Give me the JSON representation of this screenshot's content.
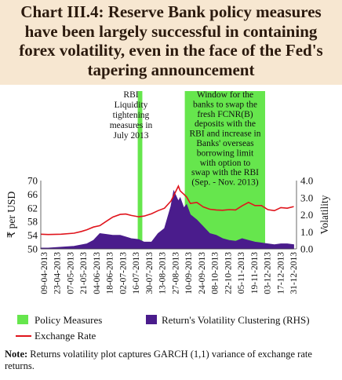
{
  "title": "Chart III.4: Reserve Bank policy measures have been largely successful in containing forex volatility, even in the face of the Fed's tapering announcement",
  "note_label": "Note:",
  "note_text": "Returns volatility plot captures GARCH (1,1) variance of exchange rate returns.",
  "annotations": {
    "rbi_liquidity": [
      "RBI",
      "Liquidity",
      "tightening",
      "measures in",
      "July 2013"
    ],
    "fcnr_window": [
      "Window for the",
      "banks to swap the",
      "fresh FCNR(B)",
      "deposits with the",
      "RBI and increase in",
      "Banks' overseas",
      "borrowing limit",
      "with option to",
      "swap with the RBI",
      "(Sep. - Nov. 2013)"
    ]
  },
  "legend": {
    "policy": "Policy Measures",
    "volatility": "Return's Volatility Clustering (RHS)",
    "rate": "Exchange Rate"
  },
  "colors": {
    "policy": "#66e64d",
    "volatility": "#4a1c8c",
    "rate": "#e0141c",
    "title_bg": "#f7e7d1"
  },
  "chart_data": {
    "type": "line",
    "ylabel": "₹ per USD",
    "y2label": "Volatility",
    "ylim": [
      50,
      70
    ],
    "y2lim": [
      0,
      4
    ],
    "yticks": [
      50,
      54,
      58,
      62,
      66,
      70
    ],
    "y2ticks": [
      "0.0",
      "1.0",
      "2.0",
      "3.0",
      "4.0"
    ],
    "x_ticks": [
      "09-04-2013",
      "23-04-2013",
      "07-05-2013",
      "21-05-2013",
      "04-06-2013",
      "18-06-2013",
      "02-07-2013",
      "16-07-2013",
      "30-07-2013",
      "13-08-2013",
      "27-08-2013",
      "10-09-2013",
      "24-09-2013",
      "08-10-2013",
      "22-10-2013",
      "05-11-2013",
      "19-11-2013",
      "03-12-2013",
      "17-12-2013",
      "31-12-2013"
    ],
    "shaded_periods": [
      {
        "name": "RBI liquidity tightening",
        "start": "15-07-2013",
        "end": "20-07-2013"
      },
      {
        "name": "FCNR(B) swap window",
        "start": "04-09-2013",
        "end": "30-11-2013"
      }
    ],
    "series": [
      {
        "name": "Exchange Rate",
        "axis": "left",
        "style": "line",
        "x": [
          "01-04-2013",
          "09-04-2013",
          "23-04-2013",
          "07-05-2013",
          "15-05-2013",
          "21-05-2013",
          "28-05-2013",
          "04-06-2013",
          "11-06-2013",
          "18-06-2013",
          "26-06-2013",
          "02-07-2013",
          "08-07-2013",
          "16-07-2013",
          "22-07-2013",
          "30-07-2013",
          "06-08-2013",
          "13-08-2013",
          "20-08-2013",
          "23-08-2013",
          "28-08-2013",
          "30-08-2013",
          "03-09-2013",
          "06-09-2013",
          "10-09-2013",
          "17-09-2013",
          "24-09-2013",
          "01-10-2013",
          "08-10-2013",
          "15-10-2013",
          "22-10-2013",
          "29-10-2013",
          "05-11-2013",
          "12-11-2013",
          "19-11-2013",
          "26-11-2013",
          "03-12-2013",
          "10-12-2013",
          "17-12-2013",
          "24-12-2013",
          "31-12-2013"
        ],
        "values": [
          54.3,
          54.2,
          54.3,
          54.6,
          55.1,
          55.6,
          56.4,
          56.8,
          58.1,
          59.3,
          60.1,
          60.2,
          59.8,
          59.4,
          59.6,
          60.3,
          61.2,
          61.9,
          64.0,
          65.6,
          68.4,
          67.0,
          66.0,
          65.2,
          63.3,
          63.6,
          62.3,
          61.6,
          61.4,
          61.3,
          61.5,
          61.4,
          62.6,
          63.6,
          62.7,
          62.7,
          61.5,
          61.2,
          62.1,
          61.9,
          62.4
        ]
      },
      {
        "name": "Return's Volatility Clustering (RHS)",
        "axis": "right",
        "style": "area",
        "x": [
          "01-04-2013",
          "09-04-2013",
          "23-04-2013",
          "07-05-2013",
          "21-05-2013",
          "28-05-2013",
          "04-06-2013",
          "11-06-2013",
          "18-06-2013",
          "26-06-2013",
          "02-07-2013",
          "08-07-2013",
          "16-07-2013",
          "22-07-2013",
          "30-07-2013",
          "06-08-2013",
          "13-08-2013",
          "20-08-2013",
          "23-08-2013",
          "28-08-2013",
          "30-08-2013",
          "03-09-2013",
          "06-09-2013",
          "10-09-2013",
          "17-09-2013",
          "24-09-2013",
          "01-10-2013",
          "08-10-2013",
          "15-10-2013",
          "22-10-2013",
          "29-10-2013",
          "05-11-2013",
          "12-11-2013",
          "19-11-2013",
          "26-11-2013",
          "03-12-2013",
          "10-12-2013",
          "17-12-2013",
          "24-12-2013",
          "31-12-2013"
        ],
        "values": [
          0.05,
          0.05,
          0.1,
          0.15,
          0.3,
          0.5,
          0.9,
          0.85,
          0.8,
          0.8,
          0.7,
          0.6,
          0.55,
          0.4,
          0.4,
          0.9,
          1.2,
          2.5,
          3.4,
          2.8,
          3.0,
          2.4,
          2.6,
          2.0,
          1.7,
          1.3,
          0.9,
          0.8,
          0.6,
          0.5,
          0.45,
          0.6,
          0.5,
          0.4,
          0.35,
          0.3,
          0.25,
          0.3,
          0.3,
          0.25
        ]
      }
    ]
  }
}
